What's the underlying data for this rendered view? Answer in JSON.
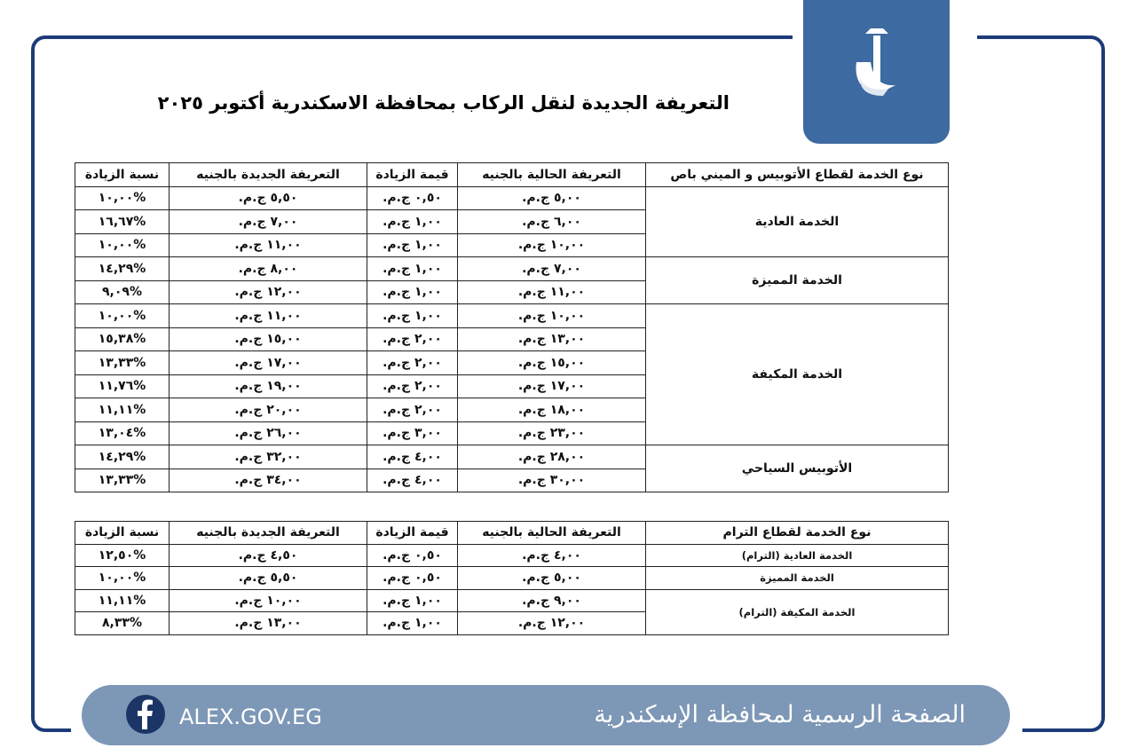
{
  "header": {
    "title": "التعريفة الجديدة لنقل الركاب بمحافظة الاسكندرية أكتوبر ٢٠٢٥"
  },
  "tables": [
    {
      "headers": [
        "نوع الخدمة لقطاع الأتوبيس و الميني باص",
        "التعريفة الحالية بالجنيه",
        "قيمة الزيادة",
        "التعريفة الجديدة بالجنيه",
        "نسبة الزيادة"
      ],
      "groups": [
        {
          "service": "الخدمة العادية",
          "rows": [
            [
              "٥,٠٠ ج.م.",
              "٠,٥٠ ج.م.",
              "٥,٥٠ ج.م.",
              "%١٠,٠٠"
            ],
            [
              "٦,٠٠ ج.م.",
              "١,٠٠ ج.م.",
              "٧,٠٠ ج.م.",
              "%١٦,٦٧"
            ],
            [
              "١٠,٠٠ ج.م.",
              "١,٠٠ ج.م.",
              "١١,٠٠ ج.م.",
              "%١٠,٠٠"
            ]
          ]
        },
        {
          "service": "الخدمة المميزة",
          "rows": [
            [
              "٧,٠٠ ج.م.",
              "١,٠٠ ج.م.",
              "٨,٠٠ ج.م.",
              "%١٤,٢٩"
            ],
            [
              "١١,٠٠ ج.م.",
              "١,٠٠ ج.م.",
              "١٢,٠٠ ج.م.",
              "%٩,٠٩"
            ]
          ]
        },
        {
          "service": "الخدمة المكيفة",
          "rows": [
            [
              "١٠,٠٠ ج.م.",
              "١,٠٠ ج.م.",
              "١١,٠٠ ج.م.",
              "%١٠,٠٠"
            ],
            [
              "١٣,٠٠ ج.م.",
              "٢,٠٠ ج.م.",
              "١٥,٠٠ ج.م.",
              "%١٥,٣٨"
            ],
            [
              "١٥,٠٠ ج.م.",
              "٢,٠٠ ج.م.",
              "١٧,٠٠ ج.م.",
              "%١٣,٣٣"
            ],
            [
              "١٧,٠٠ ج.م.",
              "٢,٠٠ ج.م.",
              "١٩,٠٠ ج.م.",
              "%١١,٧٦"
            ],
            [
              "١٨,٠٠ ج.م.",
              "٢,٠٠ ج.م.",
              "٢٠,٠٠ ج.م.",
              "%١١,١١"
            ],
            [
              "٢٣,٠٠ ج.م.",
              "٣,٠٠ ج.م.",
              "٢٦,٠٠ ج.م.",
              "%١٣,٠٤"
            ]
          ]
        },
        {
          "service": "الأتوبيس السياحي",
          "rows": [
            [
              "٢٨,٠٠ ج.م.",
              "٤,٠٠ ج.م.",
              "٣٢,٠٠ ج.م.",
              "%١٤,٢٩"
            ],
            [
              "٣٠,٠٠ ج.م.",
              "٤,٠٠ ج.م.",
              "٣٤,٠٠ ج.م.",
              "%١٣,٣٣"
            ]
          ]
        }
      ]
    },
    {
      "headers": [
        "نوع الخدمة لقطاع الترام",
        "التعريفة الحالية بالجنيه",
        "قيمة الزيادة",
        "التعريفة الجديدة بالجنيه",
        "نسبة الزيادة"
      ],
      "groups": [
        {
          "service": "الخدمة العادية (الترام)",
          "rows": [
            [
              "٤,٠٠ ج.م.",
              "٠,٥٠ ج.م.",
              "٤,٥٠ ج.م.",
              "%١٢,٥٠"
            ]
          ]
        },
        {
          "service": "الخدمة المميزة",
          "rows": [
            [
              "٥,٠٠ ج.م.",
              "٠,٥٠ ج.م.",
              "٥,٥٠ ج.م.",
              "%١٠,٠٠"
            ]
          ]
        },
        {
          "service": "الخدمة المكيفة (الترام)",
          "rows": [
            [
              "٩,٠٠ ج.م.",
              "١,٠٠ ج.م.",
              "١٠,٠٠ ج.م.",
              "%١١,١١"
            ],
            [
              "١٢,٠٠ ج.م.",
              "١,٠٠ ج.م.",
              "١٣,٠٠ ج.م.",
              "%٨,٣٣"
            ]
          ]
        }
      ]
    }
  ],
  "footer": {
    "page_name": "الصفحة الرسمية لمحافظة الإسكندرية",
    "website": "ALEX.GOV.EG"
  }
}
